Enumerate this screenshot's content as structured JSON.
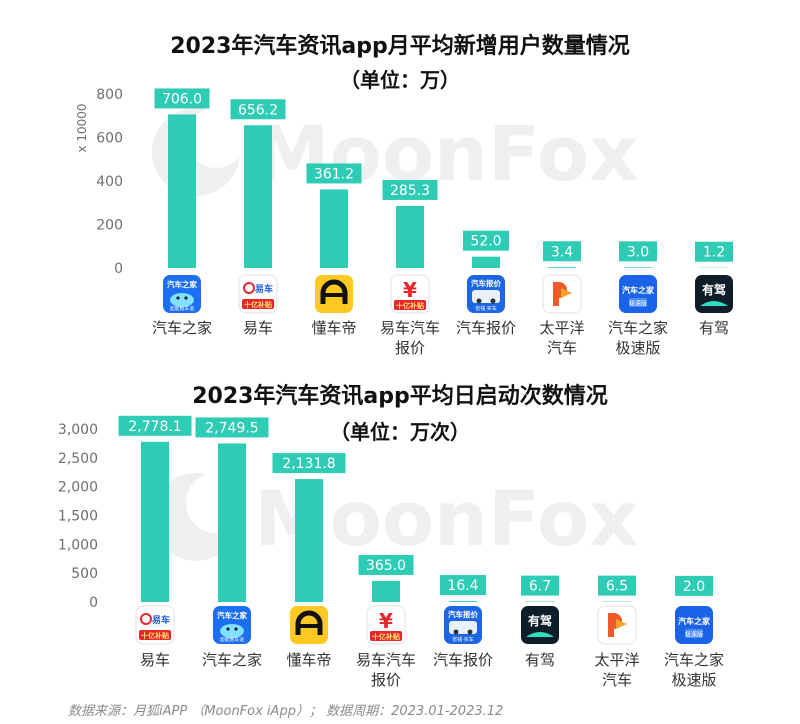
{
  "watermark": "MoonFox",
  "footer_source": "数据来源：月狐iAPP （MoonFox iApp）；  数据周期：2023.01-2023.12",
  "colors": {
    "bar": "#2ecbb5",
    "label_bg": "#2ecbb5",
    "label_text": "#ffffff",
    "axis_text": "#6f6f6f",
    "watermark": "#efefef"
  },
  "chart_data": [
    {
      "type": "bar",
      "title": "2023年汽车资讯app月平均新增用户数量情况",
      "subtitle": "（单位：万）",
      "ylabel": "x 10000",
      "xlabel": "",
      "ylim": [
        0,
        800
      ],
      "yticks": [
        "0",
        "200",
        "400",
        "600",
        "800"
      ],
      "grid": false,
      "categories": [
        {
          "name": [
            "汽车之家"
          ],
          "icon": "autohome-icon"
        },
        {
          "name": [
            "易车"
          ],
          "icon": "yiche-icon"
        },
        {
          "name": [
            "懂车帝"
          ],
          "icon": "dongchedi-icon"
        },
        {
          "name": [
            "易车汽车",
            "报价"
          ],
          "icon": "yiche-price-icon"
        },
        {
          "name": [
            "汽车报价"
          ],
          "icon": "car-price-icon"
        },
        {
          "name": [
            "太平洋",
            "汽车"
          ],
          "icon": "pcauto-icon"
        },
        {
          "name": [
            "汽车之家",
            "极速版"
          ],
          "icon": "autohome-lite-icon"
        },
        {
          "name": [
            "有驾"
          ],
          "icon": "youjia-icon"
        }
      ],
      "values": [
        706.0,
        656.2,
        361.2,
        285.3,
        52.0,
        3.4,
        3.0,
        1.2
      ],
      "labels": [
        "706.0",
        "656.2",
        "361.2",
        "285.3",
        "52.0",
        "3.4",
        "3.0",
        "1.2"
      ]
    },
    {
      "type": "bar",
      "title": "2023年汽车资讯app平均日启动次数情况",
      "subtitle": "（单位：万次）",
      "ylabel": "",
      "xlabel": "",
      "ylim": [
        0,
        3000
      ],
      "yticks": [
        "0",
        "500",
        "1,000",
        "1,500",
        "2,000",
        "2,500",
        "3,000"
      ],
      "grid": false,
      "categories": [
        {
          "name": [
            "易车"
          ],
          "icon": "yiche-icon"
        },
        {
          "name": [
            "汽车之家"
          ],
          "icon": "autohome-icon"
        },
        {
          "name": [
            "懂车帝"
          ],
          "icon": "dongchedi-icon"
        },
        {
          "name": [
            "易车汽车",
            "报价"
          ],
          "icon": "yiche-price-icon"
        },
        {
          "name": [
            "汽车报价"
          ],
          "icon": "car-price-icon"
        },
        {
          "name": [
            "有驾"
          ],
          "icon": "youjia-icon"
        },
        {
          "name": [
            "太平洋",
            "汽车"
          ],
          "icon": "pcauto-icon"
        },
        {
          "name": [
            "汽车之家",
            "极速版"
          ],
          "icon": "autohome-lite-icon"
        }
      ],
      "values": [
        2778.1,
        2749.5,
        2131.8,
        365.0,
        16.4,
        6.7,
        6.5,
        2.0
      ],
      "labels": [
        "2,778.1",
        "2,749.5",
        "2,131.8",
        "365.0",
        "16.4",
        "6.7",
        "6.5",
        "2.0"
      ]
    }
  ],
  "icon_texts": {
    "autohome": "汽车之家",
    "autohome_sub": "超能跑车道",
    "yiche": "易车",
    "yiche_sub": "十亿补贴",
    "car_price": "汽车报价",
    "car_price_sub": "省钱·买车",
    "autohome_lite": "汽车之家",
    "autohome_lite_sub": "极速版",
    "youjia": "有驾"
  }
}
